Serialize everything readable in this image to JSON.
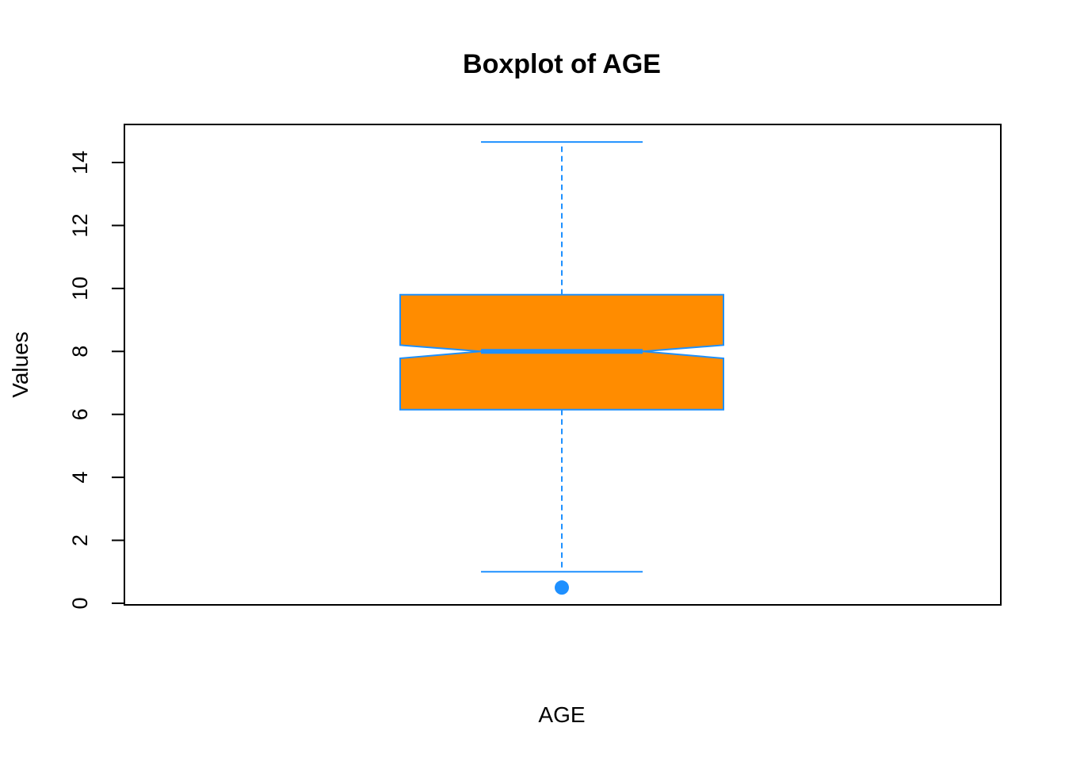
{
  "chart_data": {
    "type": "boxplot",
    "title": "Boxplot of AGE",
    "xlabel": "AGE",
    "ylabel": "Values",
    "ylim": [
      0,
      15.2
    ],
    "yticks": [
      0,
      2,
      4,
      6,
      8,
      10,
      12,
      14
    ],
    "notched": true,
    "series": [
      {
        "whisker_low": 1.0,
        "q1": 6.15,
        "median": 8.0,
        "q3": 9.8,
        "whisker_high": 14.65,
        "notch_low": 7.78,
        "notch_high": 8.2,
        "outliers": [
          0.5
        ]
      }
    ],
    "colors": {
      "box_fill": "#FF8C00",
      "box_border": "#1E90FF",
      "median": "#1E90FF",
      "whisker": "#1E90FF",
      "outlier": "#1E90FF"
    },
    "grid": false,
    "legend": "none"
  }
}
